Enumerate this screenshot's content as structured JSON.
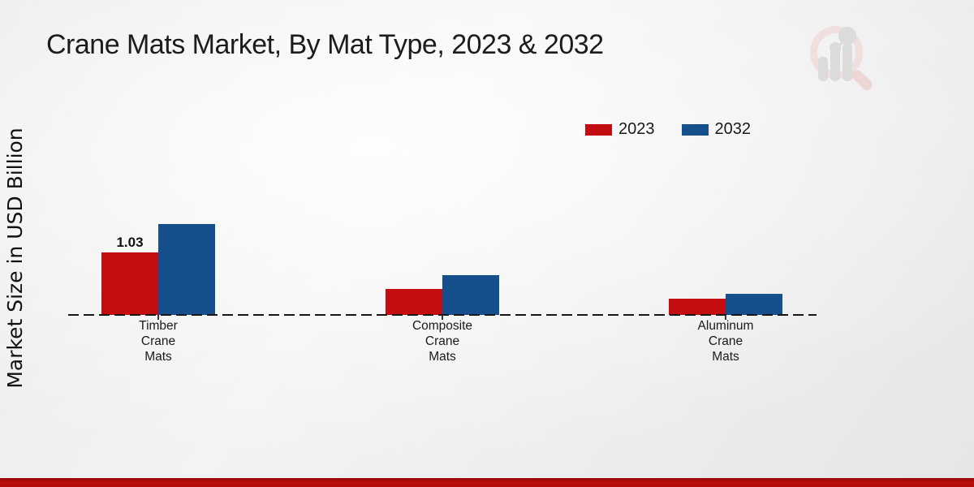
{
  "title": "Crane Mats Market, By Mat Type, 2023 & 2032",
  "y_axis_label": "Market Size in USD Billion",
  "legend": {
    "items": [
      {
        "label": "2023",
        "color": "#c40d11"
      },
      {
        "label": "2032",
        "color": "#15508c"
      }
    ]
  },
  "chart_data": {
    "type": "bar",
    "title": "Crane Mats Market, By Mat Type, 2023 & 2032",
    "ylabel": "Market Size in USD Billion",
    "categories": [
      "Timber\nCrane\nMats",
      "Composite\nCrane\nMats",
      "Aluminum\nCrane\nMats"
    ],
    "series": [
      {
        "name": "2023",
        "color": "#c40d11",
        "values": [
          1.03,
          0.43,
          0.27
        ]
      },
      {
        "name": "2032",
        "color": "#15508c",
        "values": [
          1.5,
          0.65,
          0.35
        ]
      }
    ],
    "annotations": [
      {
        "series_index": 0,
        "category_index": 0,
        "text": "1.03"
      }
    ],
    "baseline_value": 0,
    "grid": false,
    "legend_position": "top-right"
  },
  "footer": {
    "accent_color": "#b30c0c"
  },
  "logo_name": "market-research-future-watermark"
}
